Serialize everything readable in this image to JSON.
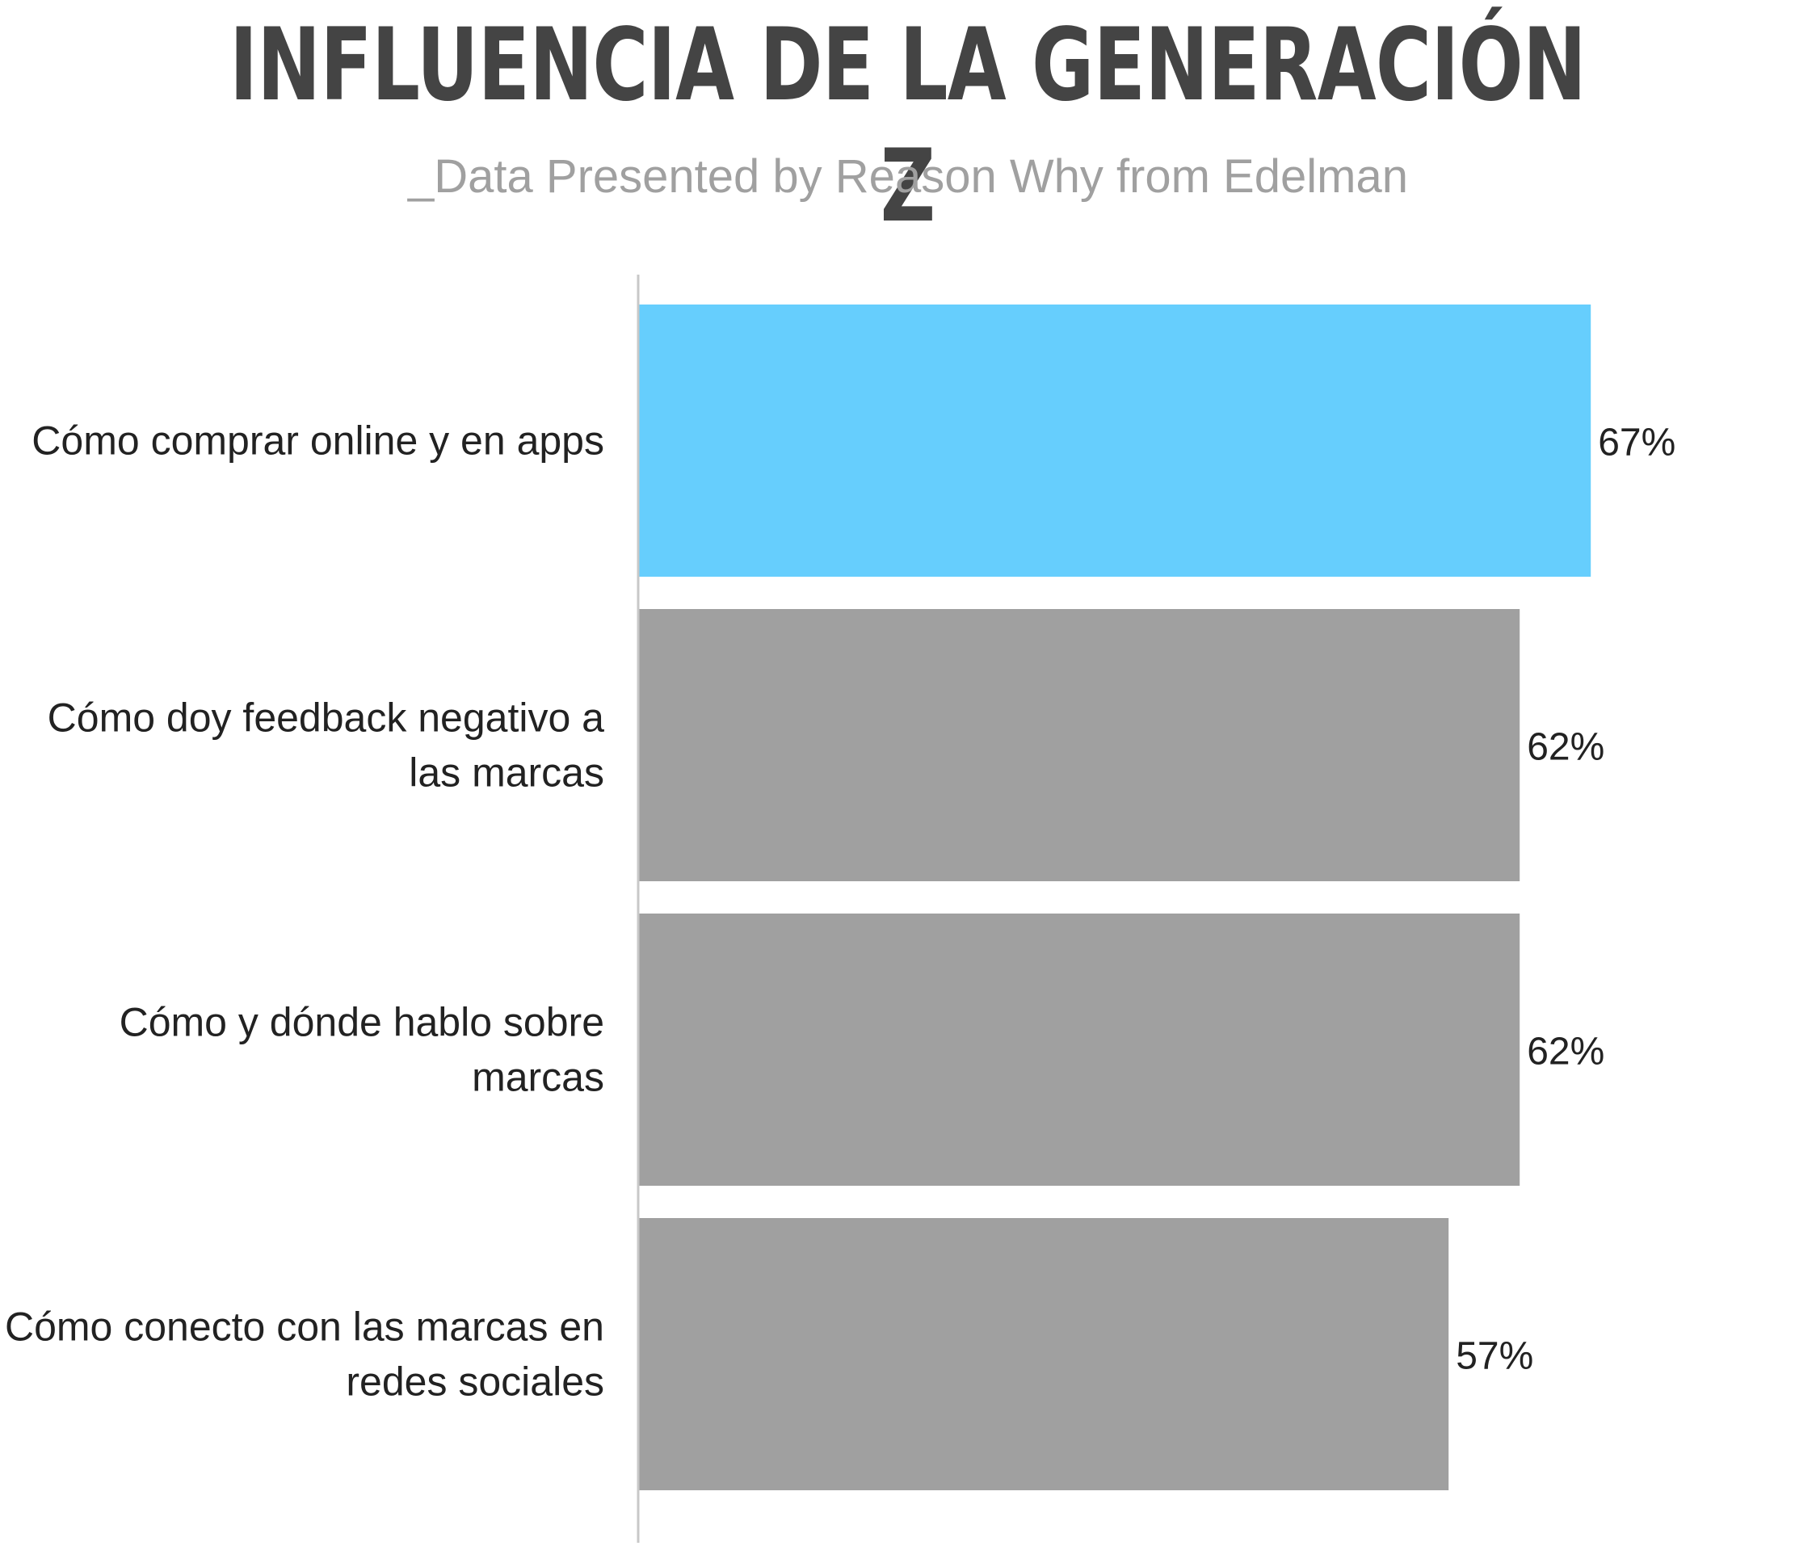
{
  "header": {
    "title": "INFLUENCIA DE LA GENERACIÓN Z",
    "subtitle": "_Data Presented by Reason Why from Edelman"
  },
  "colors": {
    "highlight_bar": "#66CEFD",
    "default_bar": "#A0A0A0",
    "title": "#444444",
    "subtitle": "#A0A0A0",
    "axis": "#C8C8C8",
    "label": "#222222"
  },
  "chart_data": {
    "type": "bar",
    "orientation": "horizontal",
    "categories": [
      [
        "Cómo comprar online y en apps"
      ],
      [
        "Cómo doy feedback negativo a",
        "las marcas"
      ],
      [
        "Cómo y dónde hablo sobre",
        "marcas"
      ],
      [
        "Cómo conecto con las marcas en",
        "redes sociales"
      ]
    ],
    "values": [
      67,
      62,
      62,
      57
    ],
    "value_labels": [
      "67%",
      "62%",
      "62%",
      "57%"
    ],
    "highlight_index": 0,
    "xlim": [
      0,
      100
    ],
    "title": "INFLUENCIA DE LA GENERACIÓN Z",
    "subtitle": "_Data Presented by Reason Why from Edelman",
    "xlabel": "",
    "ylabel": "",
    "grid": false,
    "legend": "none"
  }
}
